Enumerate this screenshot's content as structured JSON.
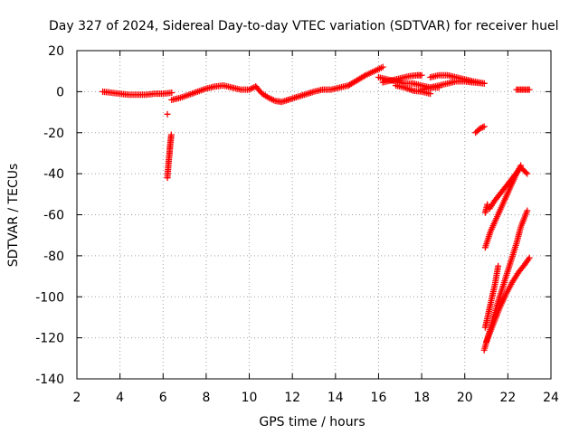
{
  "chart_data": {
    "type": "scatter",
    "title": "Day 327 of 2024, Sidereal Day-to-day VTEC variation (SDTVAR) for receiver huel",
    "xlabel": "GPS time / hours",
    "ylabel": "SDTVAR / TECUs",
    "xlim": [
      2,
      24
    ],
    "ylim": [
      -140,
      20
    ],
    "xticks": [
      2,
      4,
      6,
      8,
      10,
      12,
      14,
      16,
      18,
      20,
      22,
      24
    ],
    "yticks": [
      20,
      0,
      -20,
      -40,
      -60,
      -80,
      -100,
      -120,
      -140
    ],
    "xtick_labels": [
      "2",
      "4",
      "6",
      "8",
      "10",
      "12",
      "14",
      "16",
      "18",
      "20",
      "22",
      "24"
    ],
    "ytick_labels": [
      "20",
      "0",
      "-20",
      "-40",
      "-60",
      "-80",
      "-100",
      "-120",
      "-140"
    ],
    "grid": true,
    "marker": "plus",
    "color": "#ff0000",
    "series": [
      {
        "name": "track-1",
        "x": [
          3.2,
          3.6,
          4.0,
          4.4,
          4.8,
          5.2,
          5.6,
          6.0,
          6.4
        ],
        "y": [
          0,
          -0.5,
          -1,
          -1.5,
          -1.5,
          -1.5,
          -1,
          -1,
          -0.5
        ]
      },
      {
        "name": "track-2",
        "x": [
          6.2,
          6.23,
          6.26,
          6.3,
          6.32,
          6.35,
          6.38
        ],
        "y": [
          -42,
          -38,
          -34,
          -30,
          -27,
          -24,
          -21
        ]
      },
      {
        "name": "track-3",
        "x": [
          6.2
        ],
        "y": [
          -11
        ]
      },
      {
        "name": "track-4",
        "x": [
          6.4,
          6.8,
          7.2,
          7.6,
          8.0,
          8.4,
          8.8,
          9.2,
          9.6,
          10.0,
          10.3
        ],
        "y": [
          -4,
          -3,
          -1.5,
          0,
          1.5,
          2.5,
          3,
          2,
          1,
          1,
          2.5
        ]
      },
      {
        "name": "track-5",
        "x": [
          10.3,
          10.6,
          10.9,
          11.2,
          11.5,
          11.8,
          12.1,
          12.4,
          12.7,
          13.0,
          13.4,
          13.8,
          14.2,
          14.6
        ],
        "y": [
          2.5,
          -1,
          -3,
          -4.5,
          -5,
          -4,
          -3,
          -2,
          -1,
          0,
          1,
          1,
          2,
          3
        ]
      },
      {
        "name": "track-6",
        "x": [
          14.6,
          15.0,
          15.4,
          15.8,
          16.2
        ],
        "y": [
          3,
          5.5,
          8,
          10,
          12
        ]
      },
      {
        "name": "track-7",
        "x": [
          16.0,
          16.4,
          16.8,
          17.2,
          17.6,
          18.0,
          18.4,
          18.8
        ],
        "y": [
          7,
          6,
          5,
          4,
          4,
          3,
          2,
          2
        ]
      },
      {
        "name": "track-8",
        "x": [
          16.8,
          17.2,
          17.6,
          18.0,
          18.4
        ],
        "y": [
          3,
          2,
          0.5,
          0,
          -1
        ]
      },
      {
        "name": "track-9",
        "x": [
          16.2,
          16.6,
          17.0,
          17.4,
          17.8,
          18.0
        ],
        "y": [
          4.5,
          5.5,
          6.5,
          7.5,
          8,
          8
        ]
      },
      {
        "name": "track-10",
        "x": [
          18.0,
          18.4,
          18.8,
          19.2,
          19.6,
          20.0,
          20.4,
          20.9
        ],
        "y": [
          1,
          2,
          3,
          4,
          5,
          5,
          4.5,
          4
        ]
      },
      {
        "name": "track-11",
        "x": [
          18.4,
          18.8,
          19.2,
          19.6,
          20.0,
          20.4,
          20.9
        ],
        "y": [
          7,
          8,
          8,
          7,
          6,
          5,
          4
        ]
      },
      {
        "name": "track-12",
        "x": [
          20.5,
          20.7,
          20.9
        ],
        "y": [
          -20,
          -18,
          -17
        ]
      },
      {
        "name": "track-13",
        "x": [
          22.4,
          22.6,
          22.8,
          23.0
        ],
        "y": [
          1,
          1,
          1,
          1
        ]
      },
      {
        "name": "track-14",
        "x": [
          20.95,
          21.05
        ],
        "y": [
          -59,
          -55
        ]
      },
      {
        "name": "track-15",
        "x": [
          20.95,
          21.2,
          21.5,
          21.8,
          22.1,
          22.4,
          22.6
        ],
        "y": [
          -76,
          -68,
          -61,
          -54,
          -47,
          -40,
          -36
        ]
      },
      {
        "name": "track-16",
        "x": [
          21.15,
          21.4,
          21.7,
          22.0,
          22.3,
          22.6,
          22.9
        ],
        "y": [
          -57,
          -53,
          -49,
          -45,
          -41,
          -37,
          -40
        ]
      },
      {
        "name": "track-17",
        "x": [
          20.9,
          21.2,
          21.5,
          21.8,
          22.1,
          22.4,
          22.6,
          22.9
        ],
        "y": [
          -126,
          -115,
          -104,
          -94,
          -84,
          -74,
          -66,
          -58
        ]
      },
      {
        "name": "track-18",
        "x": [
          21.0,
          21.3,
          21.6,
          21.9,
          22.2,
          22.5,
          22.8,
          23.0
        ],
        "y": [
          -122,
          -114,
          -106,
          -99,
          -93,
          -88,
          -84,
          -81
        ]
      },
      {
        "name": "track-19",
        "x": [
          20.95,
          21.1,
          21.25,
          21.4,
          21.55
        ],
        "y": [
          -115,
          -108,
          -101,
          -94,
          -85
        ]
      }
    ]
  }
}
